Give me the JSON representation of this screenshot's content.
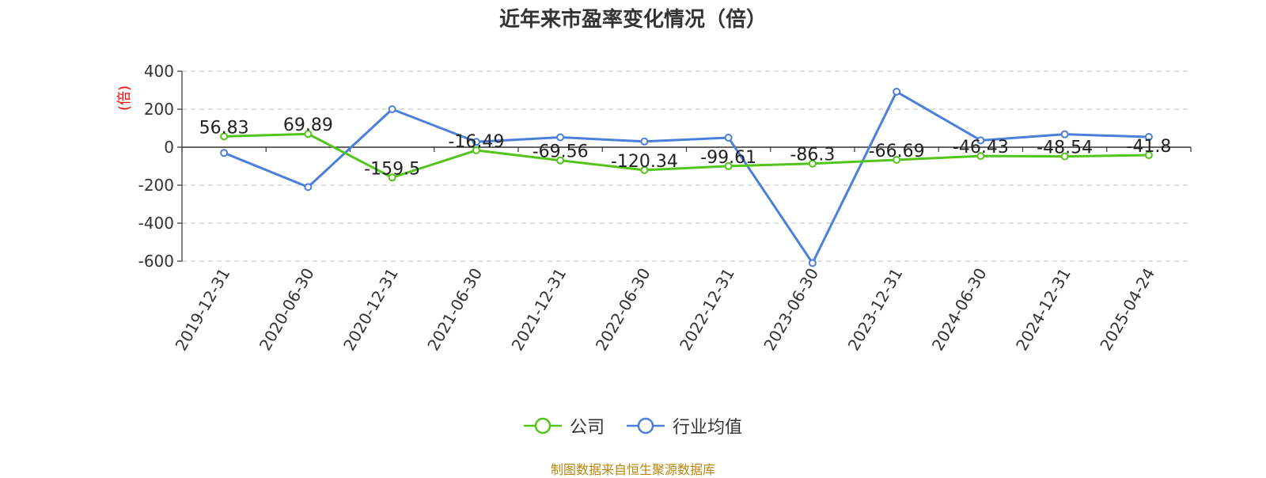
{
  "title": "近年来市盈率变化情况（倍）",
  "unit_label": "(倍)",
  "source": "制图数据来自恒生聚源数据库",
  "colors": {
    "company": "#52c41a",
    "industry": "#4a7fdc",
    "unit": "#ff0000",
    "source": "#b8860b"
  },
  "chart_data": {
    "type": "line",
    "title": "近年来市盈率变化情况（倍）",
    "ylabel": "(倍)",
    "categories": [
      "2019-12-31",
      "2020-06-30",
      "2020-12-31",
      "2021-06-30",
      "2021-12-31",
      "2022-06-30",
      "2022-12-31",
      "2023-06-30",
      "2023-12-31",
      "2024-06-30",
      "2024-12-31",
      "2025-04-24"
    ],
    "ylim": [
      -600,
      400
    ],
    "yticks": [
      400,
      200,
      0,
      -200,
      -400,
      -600
    ],
    "grid": true,
    "legend_position": "bottom",
    "series": [
      {
        "name": "公司",
        "color": "#52c41a",
        "values": [
          56.83,
          69.89,
          -159.5,
          -16.49,
          -69.56,
          -120.34,
          -99.61,
          -86.3,
          -66.69,
          -46.43,
          -48.54,
          -41.8
        ],
        "labels": [
          "56.83",
          "69.89",
          "-159.5",
          "-16.49",
          "-69.56",
          "-120.34",
          "-99.61",
          "-86.3",
          "-66.69",
          "-46.43",
          "-48.54",
          "-41.8"
        ]
      },
      {
        "name": "行业均值",
        "color": "#4a7fdc",
        "values": [
          -30,
          -210,
          200,
          28,
          52,
          30,
          50,
          -610,
          292,
          36,
          68,
          54
        ]
      }
    ]
  }
}
